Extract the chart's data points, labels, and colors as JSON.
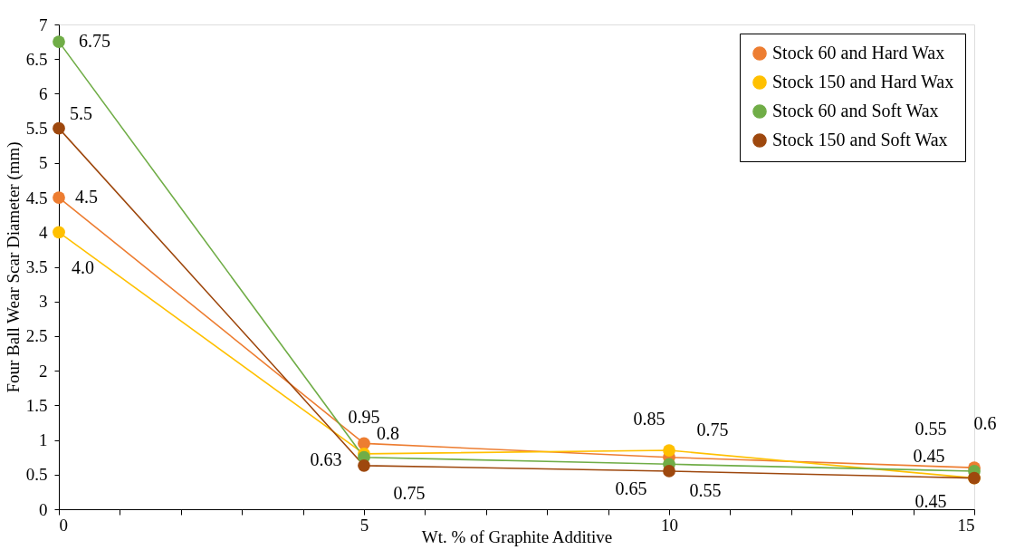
{
  "chart_data": {
    "type": "line",
    "xlabel": "Wt. % of Graphite Additive",
    "ylabel": "Four Ball Wear Scar Diameter (mm)",
    "x": [
      0,
      5,
      10,
      15
    ],
    "series": [
      {
        "name": "Stock 60 and Hard Wax",
        "color": "#ed7d31",
        "values": [
          4.5,
          0.95,
          0.75,
          0.6
        ],
        "value_labels": [
          "4.5",
          "0.95",
          "0.75",
          "0.6"
        ]
      },
      {
        "name": "Stock 150 and Hard Wax",
        "color": "#ffc000",
        "values": [
          4.0,
          0.8,
          0.85,
          0.45
        ],
        "value_labels": [
          "4.0",
          "0.8",
          "0.85",
          "0.45"
        ]
      },
      {
        "name": "Stock 60 and Soft Wax",
        "color": "#70ad47",
        "values": [
          6.75,
          0.75,
          0.65,
          0.55
        ],
        "value_labels": [
          "6.75",
          "0.75",
          "0.65",
          "0.55"
        ]
      },
      {
        "name": "Stock 150 and Soft Wax",
        "color": "#9e480e",
        "values": [
          5.5,
          0.63,
          0.55,
          0.45
        ],
        "value_labels": [
          "5.5",
          "0.63",
          "0.55",
          "0.45"
        ]
      }
    ],
    "xlim": [
      0,
      15
    ],
    "xticks": [
      0,
      {
        "value": 1,
        "label": null
      },
      {
        "value": 2,
        "label": null
      },
      {
        "value": 3,
        "label": null
      },
      {
        "value": 4,
        "label": null
      },
      5,
      {
        "value": 6,
        "label": null
      },
      {
        "value": 7,
        "label": null
      },
      {
        "value": 8,
        "label": null
      },
      {
        "value": 9,
        "label": null
      },
      10,
      {
        "value": 11,
        "label": null
      },
      {
        "value": 12,
        "label": null
      },
      {
        "value": 13,
        "label": null
      },
      {
        "value": 14,
        "label": null
      },
      15
    ],
    "ylim": [
      0,
      7
    ],
    "yticks": [
      0,
      0.5,
      1,
      1.5,
      2,
      2.5,
      3,
      3.5,
      4,
      4.5,
      5,
      5.5,
      6,
      6.5,
      7
    ],
    "grid": false,
    "legend": "top right",
    "marker": "circle",
    "line_style": "solid"
  }
}
